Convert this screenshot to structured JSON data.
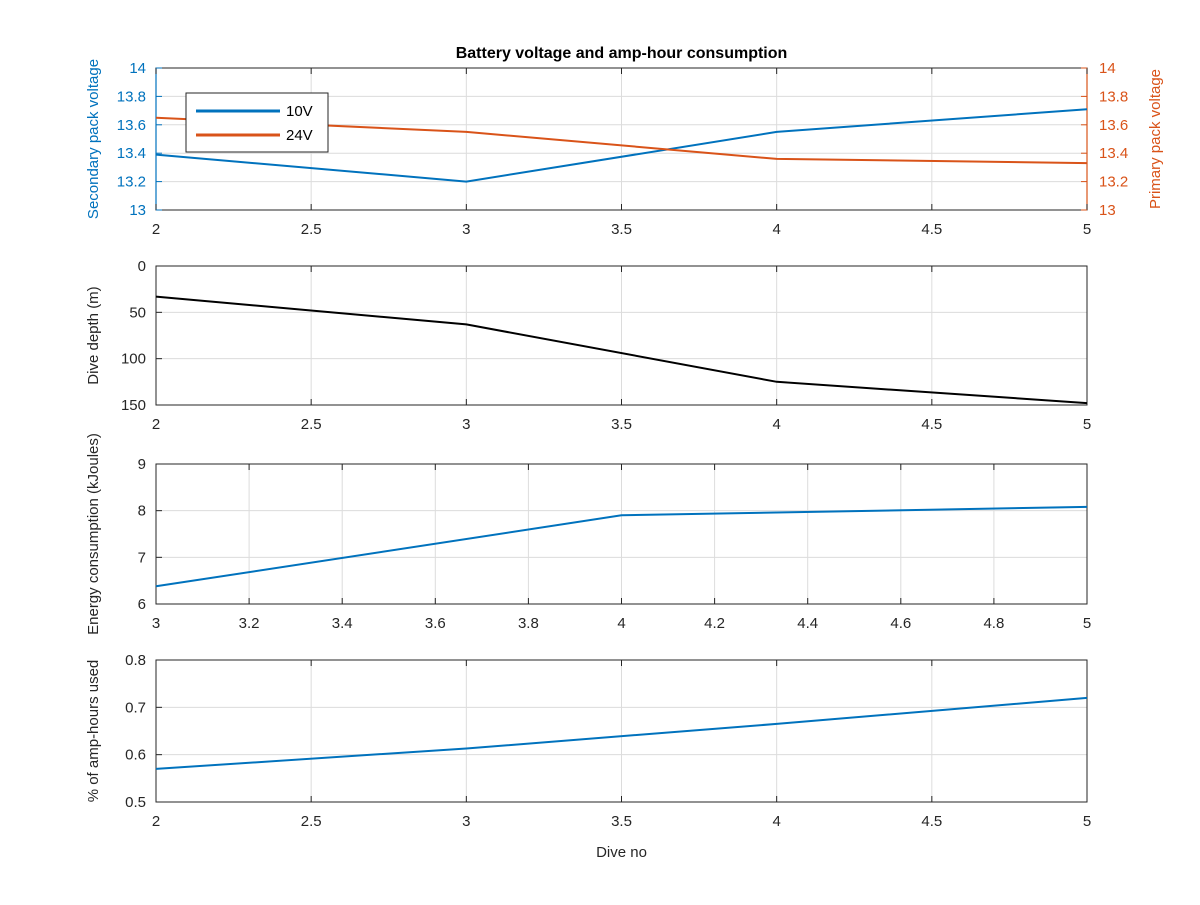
{
  "figure": {
    "title": "Battery voltage and amp-hour consumption"
  },
  "colors": {
    "blue": "#0072BD",
    "orange": "#D95319",
    "black": "#000000",
    "grid": "#dcdcdc",
    "axis": "#262626"
  },
  "chart_data": [
    {
      "type": "line",
      "title": "Battery voltage and amp-hour consumption",
      "xlabel": "",
      "ylabel": "Secondary pack voltage",
      "ylabel_right": "Primary pack voltage",
      "xlim": [
        2,
        5
      ],
      "ylim": [
        13,
        14
      ],
      "ylim_right": [
        13,
        14
      ],
      "xticks": [
        "2",
        "2.5",
        "3",
        "3.5",
        "4",
        "4.5",
        "5"
      ],
      "yticks": [
        "13",
        "13.2",
        "13.4",
        "13.6",
        "13.8",
        "14"
      ],
      "yticks_right": [
        "13",
        "13.2",
        "13.4",
        "13.6",
        "13.8",
        "14"
      ],
      "grid": true,
      "legend_position": "top-left",
      "series": [
        {
          "name": "10V",
          "axis": "left",
          "x": [
            2,
            3,
            4,
            5
          ],
          "values": [
            13.39,
            13.2,
            13.55,
            13.71
          ]
        },
        {
          "name": "24V",
          "axis": "right",
          "x": [
            2,
            3,
            4,
            5
          ],
          "values": [
            13.65,
            13.55,
            13.36,
            13.33
          ]
        }
      ]
    },
    {
      "type": "line",
      "xlabel": "",
      "ylabel": "Dive depth (m)",
      "xlim": [
        2,
        5
      ],
      "ylim": [
        0,
        150
      ],
      "y_reversed": true,
      "xticks": [
        "2",
        "2.5",
        "3",
        "3.5",
        "4",
        "4.5",
        "5"
      ],
      "yticks": [
        "0",
        "50",
        "100",
        "150"
      ],
      "grid": true,
      "series": [
        {
          "x": [
            2,
            3,
            4,
            5
          ],
          "values": [
            33,
            63,
            125,
            148
          ]
        }
      ]
    },
    {
      "type": "line",
      "xlabel": "",
      "ylabel": "Energy consumption (kJoules)",
      "xlim": [
        3,
        5
      ],
      "ylim": [
        6,
        9
      ],
      "xticks": [
        "3",
        "3.2",
        "3.4",
        "3.6",
        "3.8",
        "4",
        "4.2",
        "4.4",
        "4.6",
        "4.8",
        "5"
      ],
      "yticks": [
        "6",
        "7",
        "8",
        "9"
      ],
      "grid": true,
      "series": [
        {
          "x": [
            3,
            4,
            5
          ],
          "values": [
            6.38,
            7.9,
            8.08
          ]
        }
      ]
    },
    {
      "type": "line",
      "xlabel": "Dive no",
      "ylabel": "% of amp-hours used",
      "xlim": [
        2,
        5
      ],
      "ylim": [
        0.5,
        0.8
      ],
      "xticks": [
        "2",
        "2.5",
        "3",
        "3.5",
        "4",
        "4.5",
        "5"
      ],
      "yticks": [
        "0.5",
        "0.6",
        "0.7",
        "0.8"
      ],
      "grid": true,
      "series": [
        {
          "x": [
            2,
            3,
            4,
            5
          ],
          "values": [
            0.57,
            0.613,
            0.665,
            0.72
          ]
        }
      ]
    }
  ]
}
